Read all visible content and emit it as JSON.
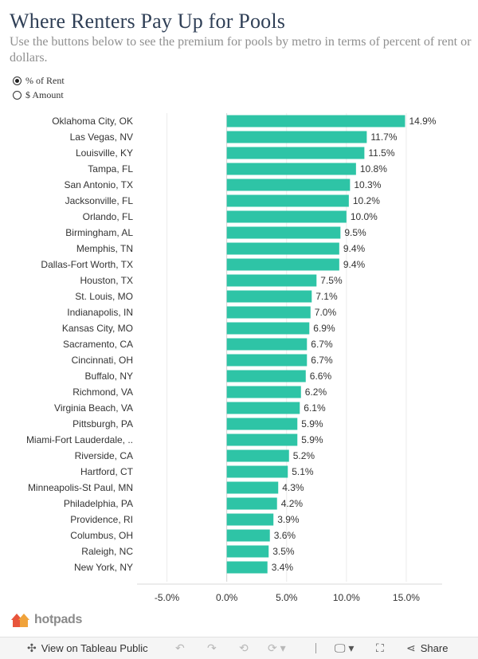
{
  "header": {
    "title": "Where Renters Pay Up for Pools",
    "subtitle": "Use the buttons below to see the premium for pools by metro in terms of percent of rent or dollars."
  },
  "controls": {
    "options": [
      {
        "label": "% of Rent",
        "selected": true
      },
      {
        "label": "$ Amount",
        "selected": false
      }
    ]
  },
  "chart_data": {
    "type": "bar",
    "orientation": "horizontal",
    "categories": [
      "Oklahoma City, OK",
      "Las Vegas, NV",
      "Louisville, KY",
      "Tampa, FL",
      "San Antonio, TX",
      "Jacksonville, FL",
      "Orlando, FL",
      "Birmingham, AL",
      "Memphis, TN",
      "Dallas-Fort Worth, TX",
      "Houston, TX",
      "St. Louis, MO",
      "Indianapolis, IN",
      "Kansas City, MO",
      "Sacramento, CA",
      "Cincinnati, OH",
      "Buffalo, NY",
      "Richmond, VA",
      "Virginia Beach, VA",
      "Pittsburgh, PA",
      "Miami-Fort Lauderdale, ..",
      "Riverside, CA",
      "Hartford, CT",
      "Minneapolis-St Paul, MN",
      "Philadelphia, PA",
      "Providence, RI",
      "Columbus, OH",
      "Raleigh, NC",
      "New York, NY"
    ],
    "values": [
      14.9,
      11.7,
      11.5,
      10.8,
      10.3,
      10.2,
      10.0,
      9.5,
      9.4,
      9.4,
      7.5,
      7.1,
      7.0,
      6.9,
      6.7,
      6.7,
      6.6,
      6.2,
      6.1,
      5.9,
      5.9,
      5.2,
      5.1,
      4.3,
      4.2,
      3.9,
      3.6,
      3.5,
      3.4
    ],
    "value_labels": [
      "14.9%",
      "11.7%",
      "11.5%",
      "10.8%",
      "10.3%",
      "10.2%",
      "10.0%",
      "9.5%",
      "9.4%",
      "9.4%",
      "7.5%",
      "7.1%",
      "7.0%",
      "6.9%",
      "6.7%",
      "6.7%",
      "6.6%",
      "6.2%",
      "6.1%",
      "5.9%",
      "5.9%",
      "5.2%",
      "5.1%",
      "4.3%",
      "4.2%",
      "3.9%",
      "3.6%",
      "3.5%",
      "3.4%"
    ],
    "xlim": [
      -7.5,
      18
    ],
    "xticks": [
      -5,
      0,
      5,
      10,
      15
    ],
    "xtick_labels": [
      "-5.0%",
      "0.0%",
      "5.0%",
      "10.0%",
      "15.0%"
    ],
    "bar_color": "#2ec4a6",
    "grid": "vertical"
  },
  "branding": {
    "logo_text": "hotpads",
    "logo_color": "#e8553c"
  },
  "toolbar": {
    "view_label": "View on Tableau Public",
    "share_label": "Share",
    "icons": [
      "tableau-icon",
      "undo-icon",
      "redo-icon",
      "revert-icon",
      "refresh-icon",
      "download-icon",
      "fullscreen-icon",
      "share-icon"
    ]
  }
}
